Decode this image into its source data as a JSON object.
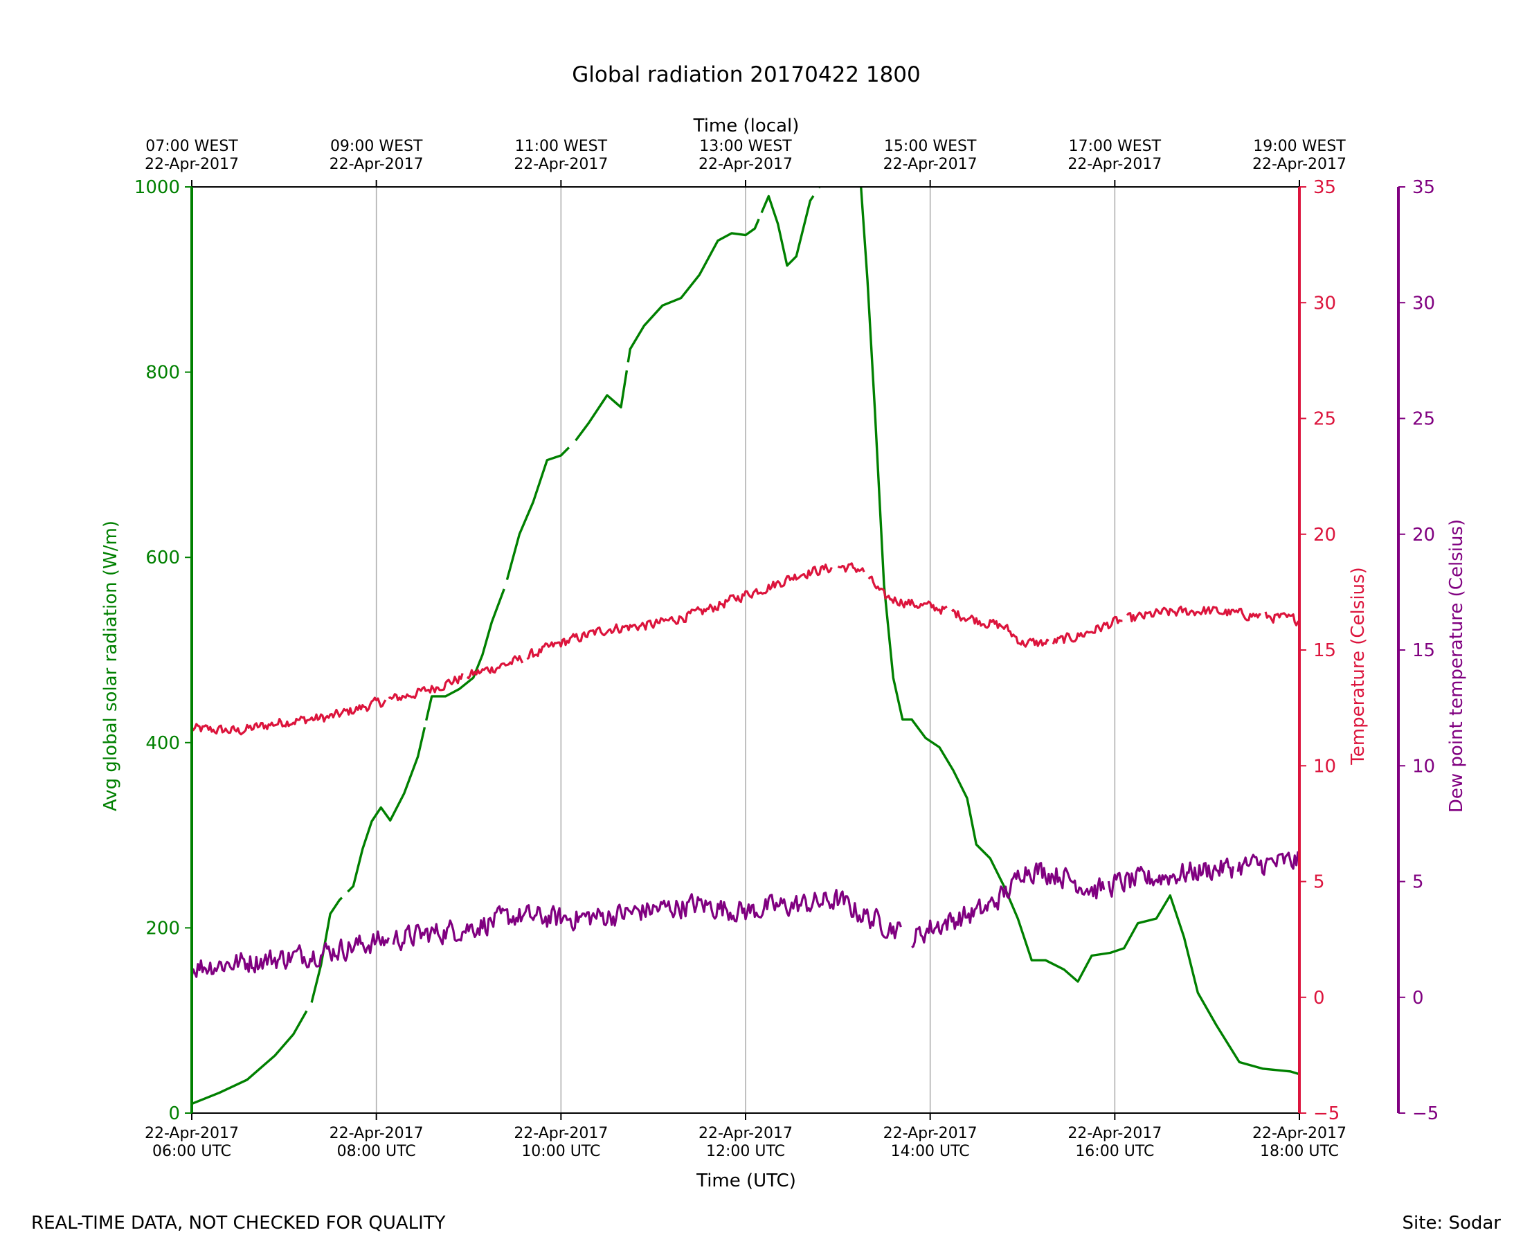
{
  "chart_data": {
    "type": "line",
    "title": "Global radiation 20170422 1800",
    "xlabel": "Time (UTC)",
    "top_xlabel": "Time (local)",
    "x_unit": "hours UTC",
    "xlim": [
      6,
      18
    ],
    "bottom_ticks": [
      {
        "x": 6,
        "line1": "22-Apr-2017",
        "line2": "06:00 UTC"
      },
      {
        "x": 8,
        "line1": "22-Apr-2017",
        "line2": "08:00 UTC"
      },
      {
        "x": 10,
        "line1": "22-Apr-2017",
        "line2": "10:00 UTC"
      },
      {
        "x": 12,
        "line1": "22-Apr-2017",
        "line2": "12:00 UTC"
      },
      {
        "x": 14,
        "line1": "22-Apr-2017",
        "line2": "14:00 UTC"
      },
      {
        "x": 16,
        "line1": "22-Apr-2017",
        "line2": "16:00 UTC"
      },
      {
        "x": 18,
        "line1": "22-Apr-2017",
        "line2": "18:00 UTC"
      }
    ],
    "top_ticks": [
      {
        "x": 6,
        "line1": "07:00 WEST",
        "line2": "22-Apr-2017"
      },
      {
        "x": 8,
        "line1": "09:00 WEST",
        "line2": "22-Apr-2017"
      },
      {
        "x": 10,
        "line1": "11:00 WEST",
        "line2": "22-Apr-2017"
      },
      {
        "x": 12,
        "line1": "13:00 WEST",
        "line2": "22-Apr-2017"
      },
      {
        "x": 14,
        "line1": "15:00 WEST",
        "line2": "22-Apr-2017"
      },
      {
        "x": 16,
        "line1": "17:00 WEST",
        "line2": "22-Apr-2017"
      },
      {
        "x": 18,
        "line1": "19:00 WEST",
        "line2": "22-Apr-2017"
      }
    ],
    "grid": "vertical",
    "axes": {
      "radiation": {
        "label": "Avg global solar radiation (W/m)",
        "ylim": [
          0,
          1000
        ],
        "ticks": [
          0,
          200,
          400,
          600,
          800,
          1000
        ],
        "color": "#008000"
      },
      "temperature": {
        "label": "Temperature (Celsius)",
        "ylim": [
          -5,
          35
        ],
        "ticks": [
          -5,
          0,
          5,
          10,
          15,
          20,
          25,
          30,
          35
        ],
        "tick_labels": [
          "−5",
          "0",
          "5",
          "10",
          "15",
          "20",
          "25",
          "30",
          "35"
        ],
        "color": "#DC143C"
      },
      "dewpoint": {
        "label": "Dew point temperature (Celsius)",
        "ylim": [
          -5,
          35
        ],
        "ticks": [
          -5,
          0,
          5,
          10,
          15,
          20,
          25,
          30,
          35
        ],
        "tick_labels": [
          "−5",
          "0",
          "5",
          "10",
          "15",
          "20",
          "25",
          "30",
          "35"
        ],
        "color": "#800080"
      }
    },
    "series": [
      {
        "name": "Avg global solar radiation",
        "axis": "radiation",
        "color": "#008000",
        "noise": 0,
        "points": [
          [
            6.0,
            10
          ],
          [
            6.3,
            22
          ],
          [
            6.6,
            36
          ],
          [
            6.9,
            62
          ],
          [
            7.1,
            85
          ],
          [
            7.3,
            120
          ],
          [
            7.4,
            160
          ],
          [
            7.5,
            215
          ],
          [
            7.6,
            230
          ],
          [
            7.75,
            245
          ],
          [
            7.85,
            285
          ],
          [
            7.95,
            315
          ],
          [
            8.05,
            330
          ],
          [
            8.15,
            316
          ],
          [
            8.3,
            345
          ],
          [
            8.45,
            385
          ],
          [
            8.6,
            450
          ],
          [
            8.75,
            450
          ],
          [
            8.9,
            458
          ],
          [
            9.05,
            470
          ],
          [
            9.15,
            495
          ],
          [
            9.25,
            530
          ],
          [
            9.4,
            570
          ],
          [
            9.55,
            625
          ],
          [
            9.7,
            660
          ],
          [
            9.85,
            705
          ],
          [
            10.0,
            710
          ],
          [
            10.15,
            725
          ],
          [
            10.3,
            745
          ],
          [
            10.5,
            775
          ],
          [
            10.65,
            762
          ],
          [
            10.75,
            825
          ],
          [
            10.9,
            850
          ],
          [
            11.1,
            872
          ],
          [
            11.3,
            880
          ],
          [
            11.5,
            905
          ],
          [
            11.7,
            942
          ],
          [
            11.85,
            950
          ],
          [
            12.0,
            948
          ],
          [
            12.1,
            955
          ],
          [
            12.25,
            990
          ],
          [
            12.35,
            960
          ],
          [
            12.45,
            915
          ],
          [
            12.55,
            925
          ],
          [
            12.7,
            985
          ],
          [
            12.8,
            1000
          ]
        ],
        "gaps": [
          [
            12.8,
            13.25
          ]
        ]
      },
      {
        "name": "Avg global solar radiation (afternoon)",
        "axis": "radiation",
        "color": "#008000",
        "noise": 0,
        "points": [
          [
            13.25,
            1000
          ],
          [
            13.32,
            900
          ],
          [
            13.4,
            760
          ],
          [
            13.5,
            570
          ],
          [
            13.6,
            470
          ],
          [
            13.7,
            425
          ],
          [
            13.8,
            425
          ],
          [
            13.95,
            405
          ],
          [
            14.1,
            395
          ],
          [
            14.25,
            370
          ],
          [
            14.4,
            340
          ],
          [
            14.5,
            290
          ],
          [
            14.65,
            275
          ],
          [
            14.8,
            245
          ],
          [
            14.95,
            210
          ],
          [
            15.1,
            165
          ],
          [
            15.25,
            165
          ],
          [
            15.45,
            155
          ],
          [
            15.6,
            142
          ],
          [
            15.75,
            170
          ],
          [
            15.95,
            173
          ],
          [
            16.1,
            178
          ],
          [
            16.25,
            205
          ],
          [
            16.45,
            210
          ],
          [
            16.6,
            235
          ],
          [
            16.75,
            190
          ],
          [
            16.9,
            130
          ],
          [
            17.1,
            95
          ],
          [
            17.35,
            55
          ],
          [
            17.6,
            48
          ],
          [
            17.9,
            45
          ],
          [
            18.0,
            42
          ]
        ],
        "gaps": []
      },
      {
        "name": "Temperature",
        "axis": "temperature",
        "color": "#DC143C",
        "noise": 0.25,
        "points": [
          [
            6.0,
            11.6
          ],
          [
            6.5,
            11.5
          ],
          [
            7.0,
            11.9
          ],
          [
            7.5,
            12.1
          ],
          [
            8.0,
            12.7
          ],
          [
            8.5,
            13.2
          ],
          [
            9.0,
            13.9
          ],
          [
            9.5,
            14.5
          ],
          [
            10.0,
            15.3
          ],
          [
            10.5,
            15.9
          ],
          [
            11.0,
            16.1
          ],
          [
            11.5,
            16.6
          ],
          [
            12.0,
            17.4
          ],
          [
            12.3,
            17.8
          ],
          [
            12.6,
            18.3
          ],
          [
            13.0,
            18.6
          ],
          [
            13.25,
            18.5
          ],
          [
            13.5,
            17.3
          ],
          [
            13.8,
            17.0
          ],
          [
            14.1,
            16.8
          ],
          [
            14.5,
            16.3
          ],
          [
            14.8,
            16.0
          ],
          [
            15.0,
            15.3
          ],
          [
            15.3,
            15.3
          ],
          [
            15.6,
            15.6
          ],
          [
            16.0,
            16.2
          ],
          [
            16.5,
            16.6
          ],
          [
            17.0,
            16.7
          ],
          [
            17.5,
            16.5
          ],
          [
            18.0,
            16.3
          ]
        ],
        "gaps": [
          [
            8.1,
            8.13
          ],
          [
            8.95,
            8.98
          ],
          [
            9.6,
            9.63
          ],
          [
            12.95,
            13.0
          ],
          [
            13.3,
            13.33
          ],
          [
            14.2,
            14.23
          ],
          [
            15.3,
            15.33
          ],
          [
            16.1,
            16.13
          ],
          [
            17.6,
            17.63
          ]
        ]
      },
      {
        "name": "Dew point temperature",
        "axis": "dewpoint",
        "color": "#800080",
        "noise": 0.55,
        "points": [
          [
            6.0,
            1.3
          ],
          [
            6.5,
            1.5
          ],
          [
            7.0,
            1.7
          ],
          [
            7.5,
            2.0
          ],
          [
            8.0,
            2.4
          ],
          [
            8.5,
            2.7
          ],
          [
            9.0,
            3.0
          ],
          [
            9.5,
            3.5
          ],
          [
            10.0,
            3.4
          ],
          [
            10.5,
            3.5
          ],
          [
            11.0,
            3.8
          ],
          [
            11.5,
            4.0
          ],
          [
            12.0,
            3.7
          ],
          [
            12.3,
            3.9
          ],
          [
            12.6,
            4.0
          ],
          [
            13.0,
            4.2
          ],
          [
            13.3,
            3.5
          ],
          [
            13.6,
            3.0
          ],
          [
            13.8,
            2.5
          ],
          [
            14.0,
            3.0
          ],
          [
            14.3,
            3.4
          ],
          [
            14.6,
            3.8
          ],
          [
            14.9,
            4.8
          ],
          [
            15.0,
            5.6
          ],
          [
            15.4,
            5.3
          ],
          [
            15.8,
            4.6
          ],
          [
            16.0,
            4.9
          ],
          [
            16.5,
            5.2
          ],
          [
            17.0,
            5.5
          ],
          [
            17.5,
            5.7
          ],
          [
            18.0,
            5.9
          ]
        ],
        "gaps": [
          [
            8.15,
            8.18
          ],
          [
            13.7,
            13.8
          ],
          [
            15.9,
            15.93
          ],
          [
            17.3,
            17.33
          ]
        ]
      }
    ]
  },
  "footer": {
    "left_note": "REAL-TIME DATA, NOT CHECKED FOR QUALITY",
    "site": "Site: Sodar"
  }
}
